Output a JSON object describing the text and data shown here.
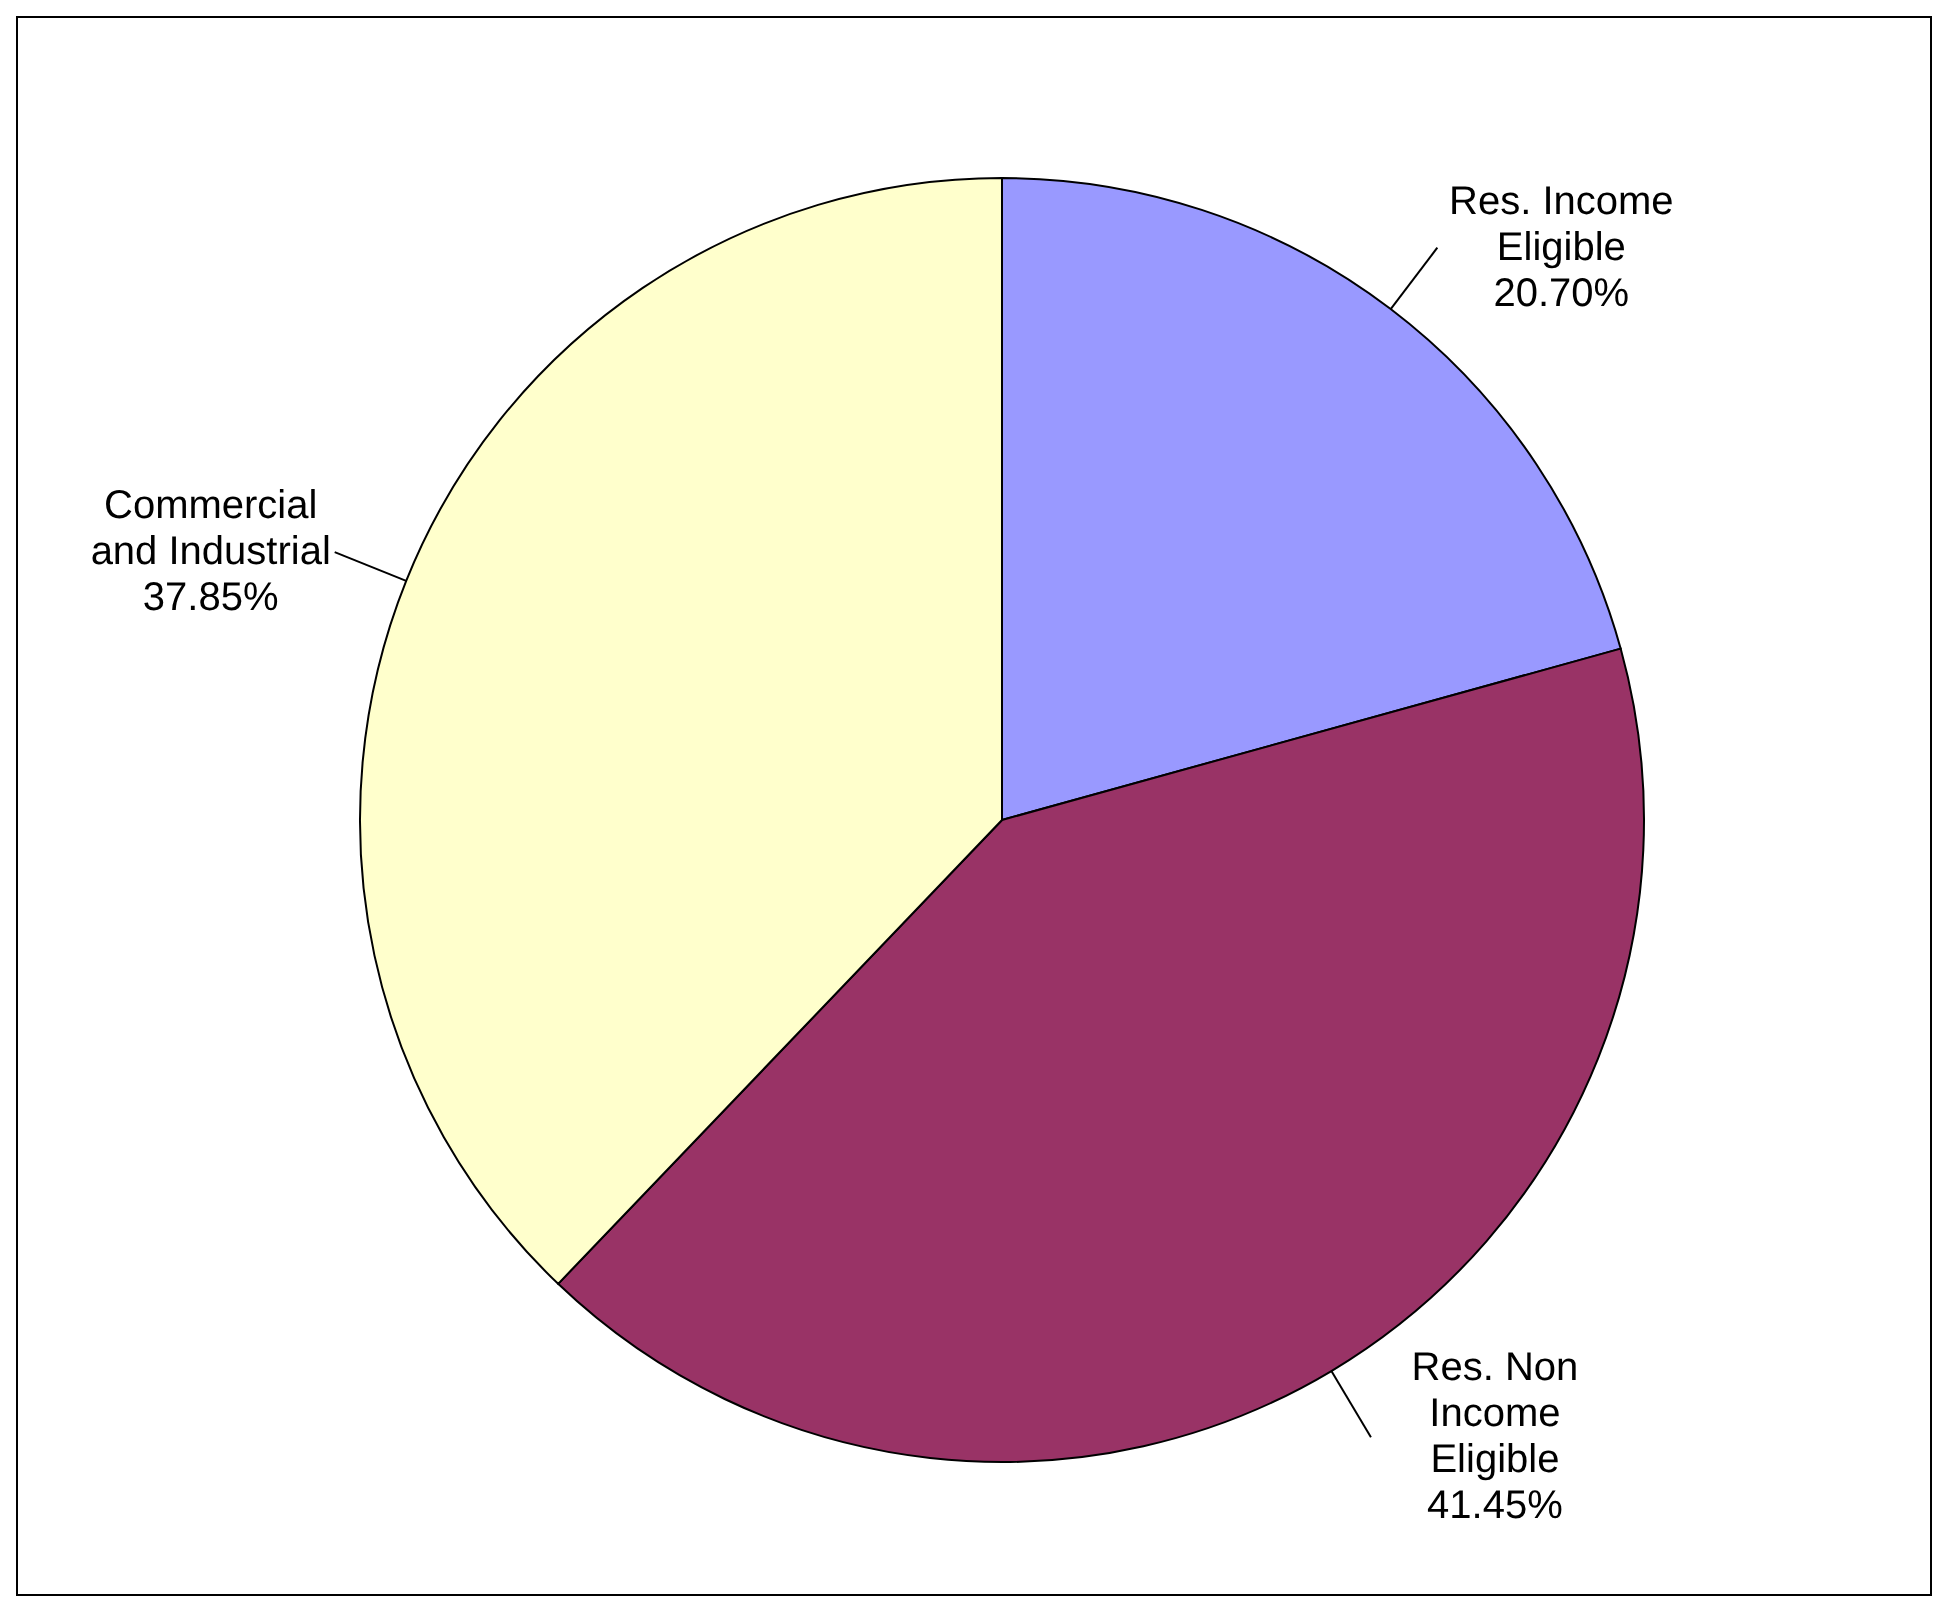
{
  "chart_data": {
    "type": "pie",
    "categories": [
      "Res. Income\nEligible",
      "Res. Non\nIncome\nEligible",
      "Commercial\nand Industrial"
    ],
    "values": [
      20.7,
      41.45,
      37.85
    ],
    "value_labels": [
      "20.70%",
      "41.45%",
      "37.85%"
    ],
    "colors": [
      "#9999ff",
      "#993366",
      "#ffffcc"
    ],
    "legend": false
  }
}
